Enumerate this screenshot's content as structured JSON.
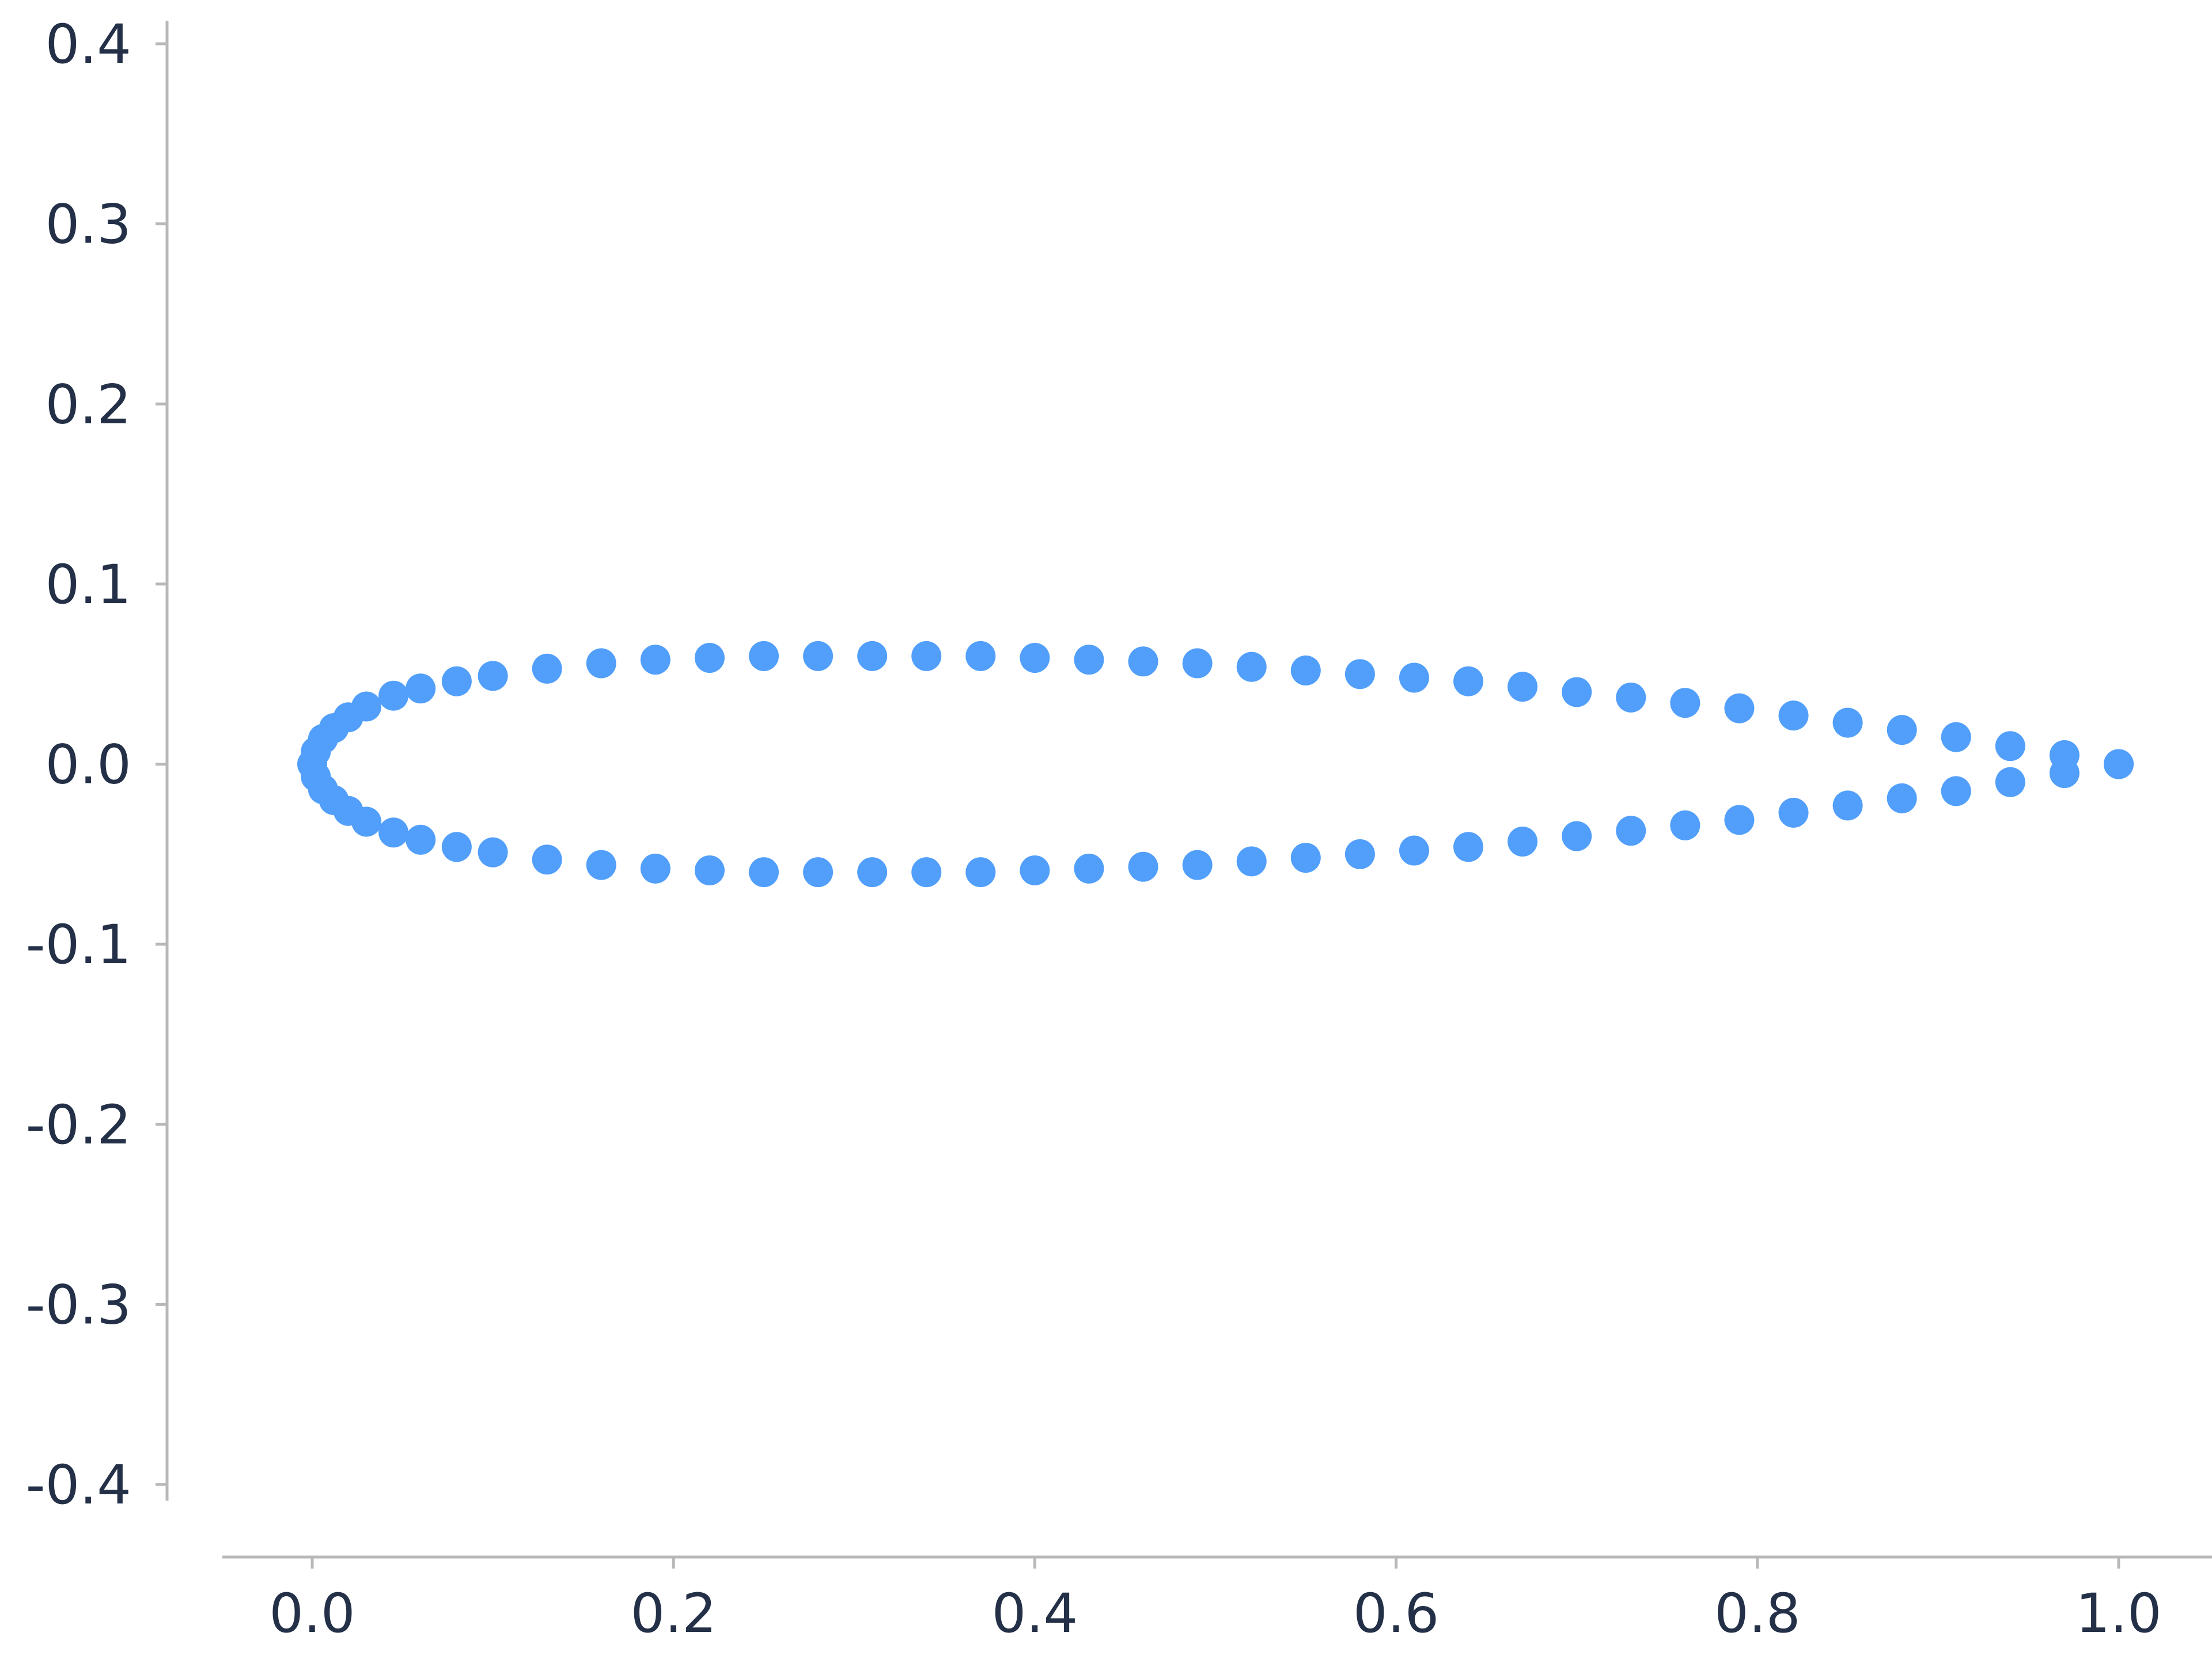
{
  "chart_data": {
    "type": "scatter",
    "title": "",
    "xlabel": "",
    "ylabel": "",
    "xlim": [
      -0.1,
      1.1
    ],
    "ylim": [
      -0.4,
      0.4
    ],
    "grid": false,
    "legend": "none",
    "x_ticks": [
      "0.0",
      "0.2",
      "0.4",
      "0.6",
      "0.8",
      "1.0"
    ],
    "y_ticks": [
      "0.4",
      "0.3",
      "0.2",
      "0.1",
      "0.0",
      "-0.1",
      "-0.2",
      "-0.3",
      "-0.4"
    ],
    "colors": {
      "points": "#519ffa",
      "axis": "#b8b8b8",
      "labels": "#233047"
    },
    "series": [
      {
        "x": [
          1.0,
          0.97,
          0.94,
          0.91,
          0.88,
          0.85,
          0.82,
          0.79,
          0.76,
          0.73,
          0.7,
          0.67,
          0.64,
          0.61,
          0.58,
          0.55,
          0.52,
          0.49,
          0.46,
          0.43,
          0.4,
          0.37,
          0.34,
          0.31,
          0.28,
          0.25,
          0.22,
          0.19,
          0.16,
          0.13,
          0.1,
          0.08,
          0.06,
          0.045,
          0.03,
          0.02,
          0.012,
          0.006,
          0.002,
          0.0,
          0.002,
          0.006,
          0.012,
          0.02,
          0.03,
          0.045,
          0.06,
          0.08,
          0.1,
          0.13,
          0.16,
          0.19,
          0.22,
          0.25,
          0.28,
          0.31,
          0.34,
          0.37,
          0.4,
          0.43,
          0.46,
          0.49,
          0.52,
          0.55,
          0.58,
          0.61,
          0.64,
          0.67,
          0.7,
          0.73,
          0.76,
          0.79,
          0.82,
          0.85,
          0.88,
          0.91,
          0.94,
          0.97,
          1.0
        ],
        "y": [
          0.0,
          0.005,
          0.01,
          0.015,
          0.019,
          0.023,
          0.027,
          0.031,
          0.034,
          0.037,
          0.04,
          0.043,
          0.046,
          0.048,
          0.05,
          0.052,
          0.054,
          0.056,
          0.057,
          0.058,
          0.059,
          0.06,
          0.06,
          0.06,
          0.06,
          0.06,
          0.059,
          0.058,
          0.056,
          0.053,
          0.049,
          0.046,
          0.042,
          0.038,
          0.032,
          0.026,
          0.02,
          0.014,
          0.007,
          0.0,
          -0.007,
          -0.014,
          -0.02,
          -0.026,
          -0.032,
          -0.038,
          -0.042,
          -0.046,
          -0.049,
          -0.053,
          -0.056,
          -0.058,
          -0.059,
          -0.06,
          -0.06,
          -0.06,
          -0.06,
          -0.06,
          -0.059,
          -0.058,
          -0.057,
          -0.056,
          -0.054,
          -0.052,
          -0.05,
          -0.048,
          -0.046,
          -0.043,
          -0.04,
          -0.037,
          -0.034,
          -0.031,
          -0.027,
          -0.023,
          -0.019,
          -0.015,
          -0.01,
          -0.005,
          0.0
        ]
      }
    ]
  }
}
